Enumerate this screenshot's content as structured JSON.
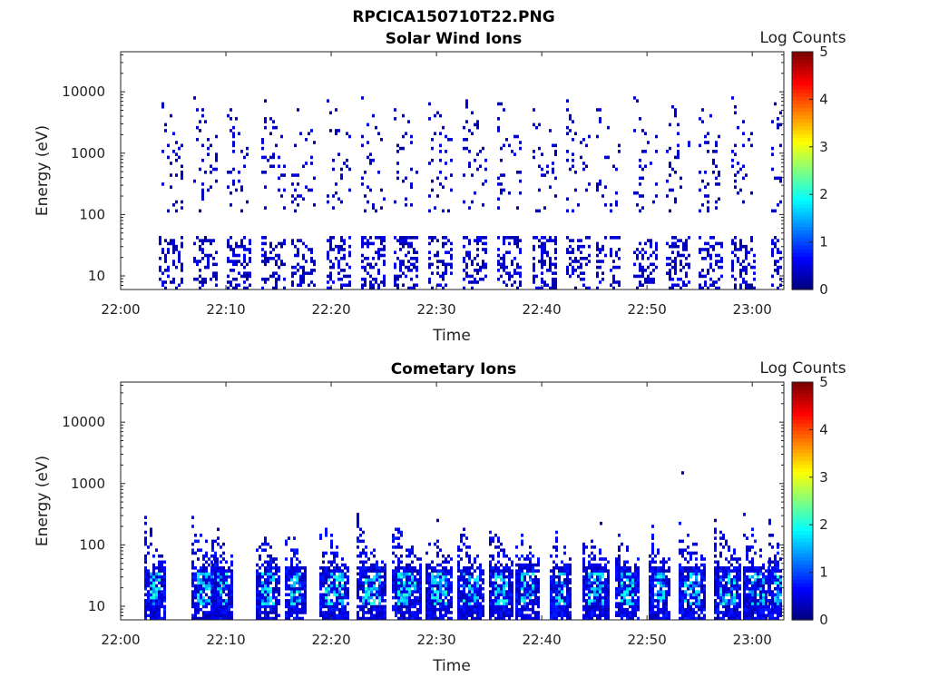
{
  "figure_title": "RPCICA150710T22.PNG",
  "chart_data": [
    {
      "type": "heatmap",
      "title": "Solar Wind Ions",
      "xlabel": "Time",
      "ylabel": "Energy (eV)",
      "y_scale": "log",
      "ylim": [
        6,
        45000
      ],
      "xlim_minutes": [
        0,
        63
      ],
      "x_ticks": [
        "22:00",
        "22:10",
        "22:20",
        "22:30",
        "22:40",
        "22:50",
        "23:00"
      ],
      "y_ticks": [
        "10",
        "100",
        "1000",
        "10000"
      ],
      "colorbar": {
        "label": "Log Counts",
        "ticks": [
          "0",
          "1",
          "2",
          "3",
          "4",
          "5"
        ],
        "range": [
          0,
          5
        ],
        "colormap": "jet"
      },
      "sweep_starts_minutes": [
        3.6,
        6.9,
        10.1,
        13.4,
        16.2,
        19.6,
        22.8,
        25.9,
        29.2,
        32.5,
        35.8,
        39.1,
        42.3,
        45.2,
        48.7,
        51.8,
        54.9,
        58.0,
        61.8
      ],
      "pattern": "sparse-low-count"
    },
    {
      "type": "heatmap",
      "title": "Cometary Ions",
      "xlabel": "Time",
      "ylabel": "Energy (eV)",
      "y_scale": "log",
      "ylim": [
        6,
        45000
      ],
      "xlim_minutes": [
        0,
        63
      ],
      "x_ticks": [
        "22:00",
        "22:10",
        "22:20",
        "22:30",
        "22:40",
        "22:50",
        "23:00"
      ],
      "y_ticks": [
        "10",
        "100",
        "1000",
        "10000"
      ],
      "colorbar": {
        "label": "Log Counts",
        "ticks": [
          "0",
          "1",
          "2",
          "3",
          "4",
          "5"
        ],
        "range": [
          0,
          5
        ],
        "colormap": "jet"
      },
      "sweep_starts_minutes": [
        2.2,
        6.7,
        8.6,
        12.8,
        15.6,
        18.9,
        22.4,
        25.8,
        29.0,
        32.0,
        35.0,
        37.5,
        40.8,
        43.9,
        47.0,
        50.2,
        53.0,
        56.4,
        59.1,
        61.5
      ],
      "pattern": "low-energy-bands"
    }
  ]
}
